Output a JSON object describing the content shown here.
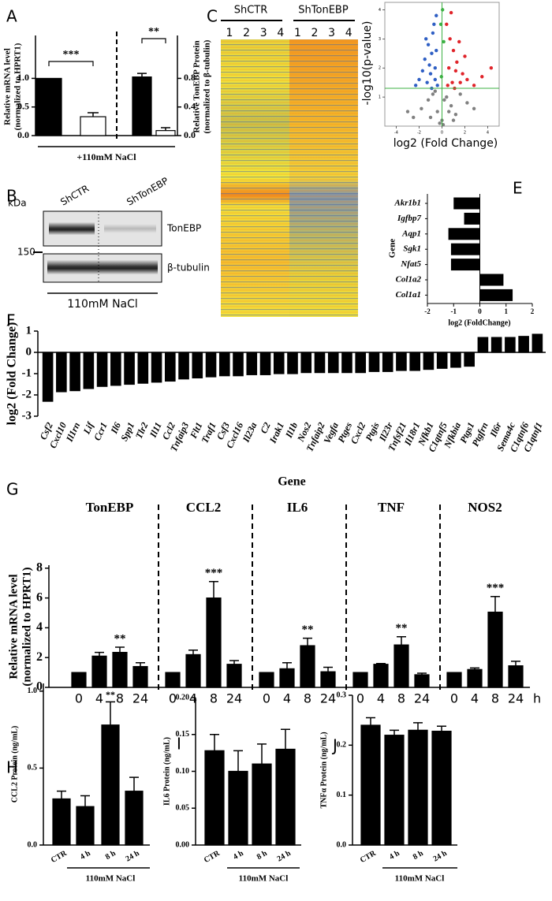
{
  "chart_data": [
    {
      "type": "bar",
      "panel": "A",
      "ylabel": [
        "Relative mRNA level",
        "(normalized to HPRT1)"
      ],
      "y2label": [
        "Relative TonEBP Protein",
        "(normalized to β-tubulin)"
      ],
      "xlabel": "+110mM NaCl",
      "values": [
        1.0,
        0.33
      ],
      "errors": [
        null,
        0.07
      ],
      "y2values": [
        0.82,
        0.07
      ],
      "y2errors": [
        0.05,
        0.04
      ],
      "colors": [
        "#000000",
        "#ffffff"
      ],
      "significance": [
        "***",
        "**"
      ],
      "ylim": [
        0,
        1.75
      ],
      "yticks": [
        {
          "value": 0,
          "label": "0.0"
        },
        0.5,
        {
          "value": 1,
          "label": "1.0"
        }
      ],
      "y2lim": [
        0,
        1.4
      ],
      "y2ticks": [
        {
          "value": 0,
          "label": "0.0"
        },
        0.4,
        0.8
      ]
    },
    {
      "type": "blot",
      "panel": "B",
      "unit": "kDa",
      "markers": [
        150
      ],
      "lanes": [
        "ShCTR",
        "ShTonEBP"
      ],
      "bands": [
        "TonEBP",
        "β-tubulin"
      ],
      "xlabel": "110mM  NaCl"
    },
    {
      "type": "heatmap",
      "panel": "C",
      "groups": [
        "ShCTR",
        "ShTonEBP"
      ],
      "columns": [
        "1",
        "2",
        "3",
        "4",
        "1",
        "2",
        "3",
        "4"
      ]
    },
    {
      "type": "scatter",
      "panel": "D",
      "xlabel": "log2 (Fold Change)",
      "ylabel": "-log10(p-value)",
      "xlim": [
        -5,
        5
      ],
      "ylim": [
        0,
        4.2
      ],
      "xticks": [
        -4,
        -2,
        0,
        2,
        4
      ],
      "yticks": [
        1,
        2,
        3,
        4
      ],
      "hline": 1.3,
      "vline": 0,
      "line_color": "#3cb043",
      "series": [
        {
          "color": "#2f5fc4",
          "x": [
            -0.5,
            -0.8,
            -1.2,
            -1.5,
            -0.6,
            -1.0,
            -2.0,
            -0.9,
            -1.3,
            -0.4,
            -1.7,
            -0.7,
            -1.1,
            -2.3,
            -0.5,
            -0.9,
            -1.4,
            -0.6
          ],
          "y": [
            3.8,
            3.2,
            2.8,
            2.3,
            2.0,
            1.8,
            1.6,
            2.5,
            1.5,
            1.4,
            1.9,
            3.5,
            2.1,
            1.4,
            2.6,
            1.3,
            3.0,
            1.6
          ]
        },
        {
          "color": "#e0242a",
          "x": [
            0.4,
            0.7,
            1.0,
            1.3,
            1.8,
            2.2,
            0.6,
            0.9,
            1.5,
            2.8,
            0.5,
            1.2,
            2.0,
            3.5,
            0.8,
            1.1,
            1.6,
            4.3
          ],
          "y": [
            3.5,
            3.0,
            2.6,
            2.2,
            1.8,
            1.6,
            2.0,
            1.5,
            2.9,
            1.4,
            1.4,
            1.9,
            2.4,
            1.7,
            3.9,
            1.3,
            1.5,
            2.0
          ]
        },
        {
          "color": "#808080",
          "x": [
            -2.5,
            -1.8,
            -1.2,
            -0.8,
            -0.4,
            0,
            0.4,
            0.8,
            1.2,
            1.6,
            2.2,
            -3,
            2.8,
            -0.2,
            0.2,
            -1.0,
            1.0,
            -0.6,
            0.6,
            0.1
          ],
          "y": [
            0.3,
            0.6,
            0.9,
            1.1,
            0.5,
            0.2,
            1.0,
            0.7,
            0.4,
            1.1,
            0.8,
            0.5,
            0.6,
            0.1,
            0.9,
            0.3,
            0.2,
            1.2,
            0.5,
            0.05
          ]
        },
        {
          "color": "#3cb043",
          "x": [
            0.05,
            -0.1,
            0.15,
            -0.05
          ],
          "y": [
            4.0,
            3.5,
            2.9,
            1.7
          ]
        }
      ]
    },
    {
      "type": "barh",
      "panel": "E",
      "ylabel": "Gene",
      "xlabel": "log2 (FoldChange)",
      "categories": [
        "Akr1b1",
        "Igfbp7",
        "Aqp1",
        "Sgk1",
        "Nfat5",
        "Col1a2",
        "Col1a1"
      ],
      "values": [
        -1.0,
        -0.6,
        -1.2,
        -1.1,
        -1.1,
        0.9,
        1.25
      ],
      "color": "#000000",
      "xlim": [
        -2,
        2
      ],
      "xticks": [
        -2,
        -1,
        0,
        1,
        2
      ]
    },
    {
      "type": "bar",
      "panel": "F",
      "ylabel": "log2 (Fold Change)",
      "xlabel": "Gene",
      "color": "#000000",
      "categories": [
        "Csf2",
        "Cxcl10",
        "Il1rn",
        "Lif",
        "Ccr1",
        "Il6",
        "Spp1",
        "Tlr2",
        "Il11",
        "Ccl2",
        "Tnfaip3",
        "Flt1",
        "Traf1",
        "Csf3",
        "Cxcl16",
        "Il23a",
        "C2",
        "Irak1",
        "Il1b",
        "Nos2",
        "Tnfaip2",
        "Vegfa",
        "Ptges",
        "Cxcl2",
        "Ptgis",
        "Il23r",
        "Tnfsf21",
        "Il18r1",
        "Nfkb1",
        "C1qtnf5",
        "Nfkbia",
        "Ptgs1",
        "Ptgfrn",
        "Il6r",
        "Sema4c",
        "C1qtnf6",
        "C1qtnf1"
      ],
      "values": [
        -2.3,
        -1.85,
        -1.8,
        -1.7,
        -1.6,
        -1.55,
        -1.5,
        -1.45,
        -1.4,
        -1.35,
        -1.25,
        -1.2,
        -1.15,
        -1.1,
        -1.1,
        -1.05,
        -1.05,
        -1.0,
        -1.0,
        -0.95,
        -0.95,
        -0.95,
        -0.95,
        -0.95,
        -0.9,
        -0.9,
        -0.85,
        -0.85,
        -0.8,
        -0.75,
        -0.7,
        -0.65,
        0.7,
        0.7,
        0.7,
        0.75,
        0.85
      ],
      "ylim": [
        -3,
        1
      ],
      "yticks": [
        -3,
        -2,
        -1,
        0,
        1
      ]
    },
    {
      "type": "bar",
      "panel": "G",
      "ylabel": [
        "Relative mRNA level",
        "(normalized to HPRT1)"
      ],
      "categories": [
        "0",
        "4",
        "8",
        "24"
      ],
      "unit": "h",
      "color": "#000000",
      "ylim": [
        0,
        8.2
      ],
      "yticks": [
        0,
        2,
        4,
        6,
        8
      ],
      "groups": [
        {
          "name": "TonEBP",
          "values": [
            1,
            2.1,
            2.35,
            1.4
          ],
          "errors": [
            null,
            0.25,
            0.35,
            0.25
          ],
          "significance": [
            null,
            null,
            "**",
            null
          ]
        },
        {
          "name": "CCL2",
          "values": [
            1,
            2.2,
            6.0,
            1.55
          ],
          "errors": [
            null,
            0.3,
            1.1,
            0.25
          ],
          "significance": [
            null,
            null,
            "***",
            null
          ]
        },
        {
          "name": "IL6",
          "values": [
            1,
            1.25,
            2.8,
            1.05
          ],
          "errors": [
            null,
            0.4,
            0.5,
            0.3
          ],
          "significance": [
            null,
            null,
            "**",
            null
          ]
        },
        {
          "name": "TNF",
          "values": [
            1,
            1.55,
            2.85,
            0.85
          ],
          "errors": [
            null,
            0.05,
            0.55,
            0.1
          ],
          "significance": [
            null,
            null,
            "**",
            null
          ]
        },
        {
          "name": "NOS2",
          "values": [
            1,
            1.2,
            5.05,
            1.45
          ],
          "errors": [
            null,
            0.1,
            1.05,
            0.3
          ],
          "significance": [
            null,
            null,
            "***",
            null
          ]
        }
      ]
    },
    {
      "type": "bar",
      "panel": "H",
      "ylabel": "CCL2 Protein (ng/mL)",
      "xlabel": "110mM NaCl",
      "categories": [
        "CTR",
        "4 h",
        "8 h",
        "24 h"
      ],
      "values": [
        0.3,
        0.25,
        0.78,
        0.35
      ],
      "errors": [
        0.05,
        0.07,
        0.15,
        0.09
      ],
      "significance": [
        null,
        null,
        "**",
        null
      ],
      "color": "#000000",
      "ylim": [
        0,
        1.05
      ],
      "yticks": [
        {
          "value": 0,
          "label": "0.0"
        },
        0.5,
        {
          "value": 1,
          "label": "1.0"
        }
      ]
    },
    {
      "type": "bar",
      "panel": "I",
      "ylabel": "IL6 Protein (ng/mL)",
      "xlabel": "110mM NaCl",
      "categories": [
        "CTR",
        "4 h",
        "8 h",
        "24 h"
      ],
      "values": [
        0.128,
        0.1,
        0.11,
        0.13
      ],
      "errors": [
        0.022,
        0.028,
        0.027,
        0.027
      ],
      "color": "#000000",
      "ylim": [
        0,
        0.2
      ],
      "yticks": [
        {
          "value": 0,
          "label": "0.00"
        },
        0.05,
        {
          "value": 0.1,
          "label": "0.10"
        },
        0.15,
        {
          "value": 0.2,
          "label": "0.20"
        }
      ]
    },
    {
      "type": "bar",
      "panel": "J",
      "ylabel": "TNFα Protein (ng/mL)",
      "xlabel": "110mM NaCl",
      "categories": [
        "CTR",
        "4 h",
        "8 h",
        "24 h"
      ],
      "values": [
        0.24,
        0.22,
        0.23,
        0.228
      ],
      "errors": [
        0.015,
        0.01,
        0.015,
        0.01
      ],
      "color": "#000000",
      "ylim": [
        0,
        0.3
      ],
      "yticks": [
        {
          "value": 0,
          "label": "0.0"
        },
        0.1,
        0.2,
        0.3
      ]
    }
  ]
}
